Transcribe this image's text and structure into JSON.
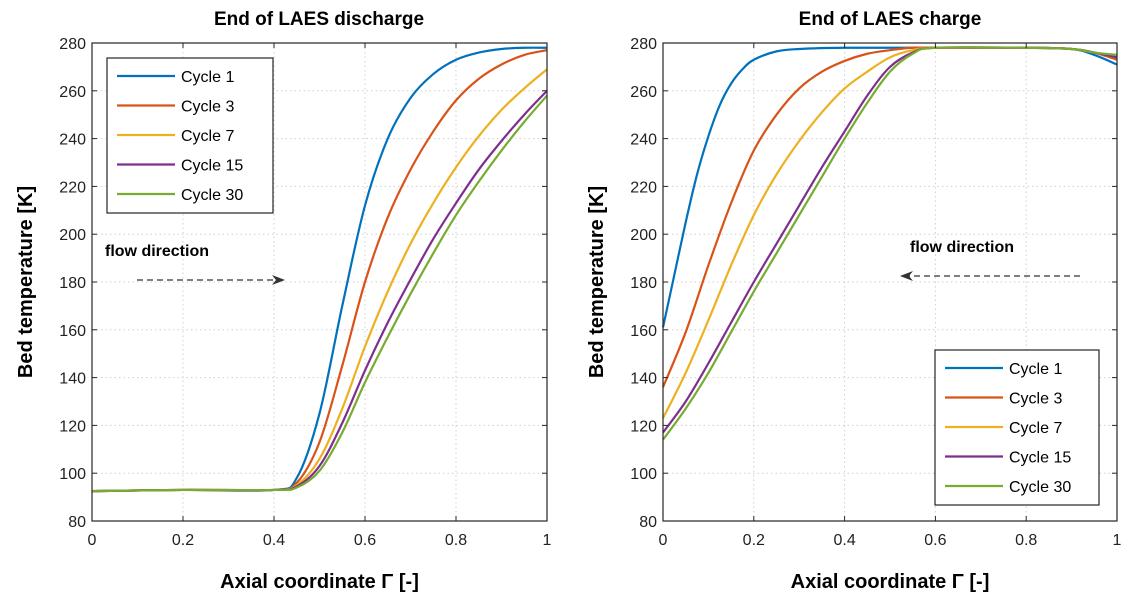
{
  "colors": {
    "Cycle 1": "#0072BD",
    "Cycle 3": "#D95319",
    "Cycle 7": "#EDB120",
    "Cycle 15": "#7E2F8E",
    "Cycle 30": "#77AC30"
  },
  "chart_data": [
    {
      "type": "line",
      "title": "End of LAES discharge",
      "xlabel": "Axial coordinate Γ [-]",
      "ylabel": "Bed temperature [K]",
      "xlim": [
        0,
        1
      ],
      "ylim": [
        80,
        280
      ],
      "xticks": [
        "0",
        "0.2",
        "0.4",
        "0.6",
        "0.8",
        "1"
      ],
      "yticks": [
        "80",
        "100",
        "120",
        "140",
        "160",
        "180",
        "200",
        "220",
        "240",
        "260",
        "280"
      ],
      "grid": true,
      "legend": {
        "placement": "top-left",
        "entries": [
          "Cycle 1",
          "Cycle 3",
          "Cycle 7",
          "Cycle 15",
          "Cycle 30"
        ]
      },
      "annotation": {
        "text": "flow direction",
        "arrow": "left-to-right"
      },
      "series": [
        {
          "name": "Cycle 1",
          "x": [
            0,
            0.2,
            0.4,
            0.45,
            0.5,
            0.55,
            0.6,
            0.65,
            0.7,
            0.75,
            0.8,
            0.85,
            0.9,
            0.95,
            1.0
          ],
          "y": [
            92.5,
            93,
            93,
            98,
            125,
            170,
            212,
            240,
            257,
            267,
            273,
            276,
            277.5,
            278,
            278
          ]
        },
        {
          "name": "Cycle 3",
          "x": [
            0,
            0.2,
            0.4,
            0.45,
            0.5,
            0.55,
            0.6,
            0.65,
            0.7,
            0.75,
            0.8,
            0.85,
            0.9,
            0.95,
            1.0
          ],
          "y": [
            92.5,
            93,
            93,
            96,
            113,
            145,
            180,
            207,
            227,
            243,
            256,
            265,
            271,
            275,
            277
          ]
        },
        {
          "name": "Cycle 7",
          "x": [
            0,
            0.2,
            0.4,
            0.45,
            0.5,
            0.55,
            0.6,
            0.65,
            0.7,
            0.75,
            0.8,
            0.85,
            0.9,
            0.95,
            1.0
          ],
          "y": [
            92.5,
            93,
            93,
            95,
            106,
            127,
            153,
            176,
            196,
            213,
            228,
            241,
            252,
            261,
            269
          ]
        },
        {
          "name": "Cycle 15",
          "x": [
            0,
            0.2,
            0.4,
            0.45,
            0.5,
            0.55,
            0.6,
            0.65,
            0.7,
            0.75,
            0.8,
            0.85,
            0.9,
            0.95,
            1.0
          ],
          "y": [
            92.5,
            93,
            93,
            94.5,
            103,
            121,
            143,
            163,
            181,
            198,
            213,
            227,
            239,
            250,
            260
          ]
        },
        {
          "name": "Cycle 30",
          "x": [
            0,
            0.2,
            0.4,
            0.45,
            0.5,
            0.55,
            0.6,
            0.65,
            0.7,
            0.75,
            0.8,
            0.85,
            0.9,
            0.95,
            1.0
          ],
          "y": [
            92.5,
            93,
            93,
            94,
            101,
            117,
            138,
            157,
            175,
            192,
            208,
            222,
            235,
            247,
            258
          ]
        }
      ]
    },
    {
      "type": "line",
      "title": "End of LAES charge",
      "xlabel": "Axial coordinate Γ [-]",
      "ylabel": "Bed temperature [K]",
      "xlim": [
        0,
        1
      ],
      "ylim": [
        80,
        280
      ],
      "xticks": [
        "0",
        "0.2",
        "0.4",
        "0.6",
        "0.8",
        "1"
      ],
      "yticks": [
        "80",
        "100",
        "120",
        "140",
        "160",
        "180",
        "200",
        "220",
        "240",
        "260",
        "280"
      ],
      "grid": true,
      "legend": {
        "placement": "bottom-right",
        "entries": [
          "Cycle 1",
          "Cycle 3",
          "Cycle 7",
          "Cycle 15",
          "Cycle 30"
        ]
      },
      "annotation": {
        "text": "flow direction",
        "arrow": "right-to-left"
      },
      "series": [
        {
          "name": "Cycle 1",
          "x": [
            0,
            0.025,
            0.05,
            0.075,
            0.1,
            0.125,
            0.15,
            0.175,
            0.2,
            0.25,
            0.3,
            0.4,
            0.6,
            0.8,
            0.9,
            0.95,
            1.0
          ],
          "y": [
            161,
            183,
            205,
            225,
            241,
            254,
            263,
            269,
            273,
            276.5,
            277.5,
            278,
            278,
            278,
            277.5,
            275,
            271
          ]
        },
        {
          "name": "Cycle 3",
          "x": [
            0,
            0.05,
            0.1,
            0.15,
            0.2,
            0.25,
            0.3,
            0.35,
            0.4,
            0.45,
            0.5,
            0.55,
            0.6,
            0.8,
            0.9,
            0.95,
            1.0
          ],
          "y": [
            136,
            159,
            187,
            213,
            235,
            250,
            261,
            268,
            272.5,
            275.5,
            277,
            278,
            278,
            278,
            277.5,
            276,
            273
          ]
        },
        {
          "name": "Cycle 7",
          "x": [
            0,
            0.05,
            0.1,
            0.15,
            0.2,
            0.25,
            0.3,
            0.35,
            0.4,
            0.45,
            0.5,
            0.55,
            0.6,
            0.8,
            0.9,
            0.95,
            1.0
          ],
          "y": [
            123,
            142,
            164,
            187,
            208,
            225,
            239,
            251,
            261,
            268,
            274,
            277,
            278,
            278,
            277.5,
            276,
            274
          ]
        },
        {
          "name": "Cycle 15",
          "x": [
            0,
            0.05,
            0.1,
            0.15,
            0.2,
            0.25,
            0.3,
            0.35,
            0.4,
            0.45,
            0.5,
            0.55,
            0.6,
            0.8,
            0.9,
            0.95,
            1.0
          ],
          "y": [
            117,
            130,
            146,
            163,
            180,
            196,
            212,
            228,
            243,
            258,
            270,
            276,
            278,
            278,
            277.5,
            276,
            274
          ]
        },
        {
          "name": "Cycle 30",
          "x": [
            0,
            0.05,
            0.1,
            0.15,
            0.2,
            0.25,
            0.3,
            0.35,
            0.4,
            0.45,
            0.5,
            0.55,
            0.6,
            0.8,
            0.9,
            0.95,
            1.0
          ],
          "y": [
            114,
            127,
            142,
            159,
            176,
            192,
            208,
            224,
            240,
            255,
            268,
            275.5,
            278,
            278,
            277.5,
            276,
            275
          ]
        }
      ]
    }
  ]
}
